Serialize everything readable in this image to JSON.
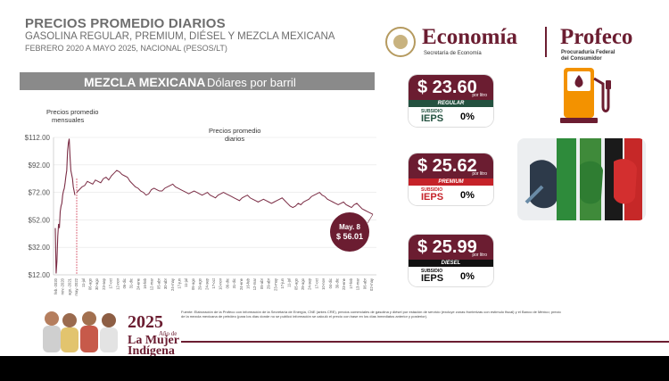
{
  "header": {
    "title": "PRECIOS PROMEDIO DIARIOS",
    "subtitle": "GASOLINA REGULAR, PREMIUM, DIÉSEL Y MEZCLA MEXICANA",
    "period": "FEBRERO 2020 A MAYO 2025, NACIONAL (PESOS/LT)"
  },
  "logos": {
    "economia": "Economía",
    "economia_sub": "Secretaría de Economía",
    "profeco": "Profeco",
    "profeco_sub1": "Procuraduría Federal",
    "profeco_sub2": "del Consumidor"
  },
  "banner": {
    "strong": "MEZCLA MEXICANA",
    "light": "Dólares por barril"
  },
  "chart_data": {
    "type": "line",
    "ylim": [
      12,
      112
    ],
    "y_ticks": [
      "$112.00",
      "$92.00",
      "$72.00",
      "$52.00",
      "$32.00",
      "$12.00"
    ],
    "annotations": {
      "monthly": [
        "Precios promedio",
        "mensuales"
      ],
      "daily": [
        "Precios promedio",
        "diarios"
      ],
      "callout_date": "May. 8",
      "callout_value": "$ 56.01"
    },
    "x_labels": [
      "feb.-2020",
      "nov.-2020",
      "ago.-2021",
      "may.-2022",
      "11-jul",
      "06-ago",
      "30-ago",
      "23-sep",
      "17-oct",
      "12-nov",
      "06-dic",
      "31-dic",
      "24-ene",
      "16-feb",
      "12-mar",
      "05-abr",
      "30-abr",
      "24-may",
      "17-jun",
      "11-jul",
      "05-ago",
      "29-ago",
      "24-sep",
      "17-oct",
      "10-nov",
      "06-dic",
      "31-dic",
      "24-ene",
      "16-feb",
      "12-mar",
      "05-abr",
      "29-abr",
      "23-may",
      "17-jun",
      "11-jul",
      "05-ago",
      "29-ago",
      "24-sep",
      "17-oct",
      "10-nov",
      "04-dic",
      "30-dic",
      "23-ene",
      "17-feb",
      "13-mar",
      "06-abr",
      "02-may"
    ],
    "monthly_series": [
      46,
      13,
      22,
      40,
      49,
      46,
      58,
      62,
      64,
      70,
      73,
      75,
      79,
      84,
      88,
      102,
      108,
      111,
      98,
      88,
      85,
      82,
      76,
      73,
      70
    ],
    "daily_series": [
      72,
      74,
      76,
      77,
      80,
      79,
      78,
      81,
      80,
      79,
      82,
      83,
      81,
      84,
      86,
      88,
      87,
      85,
      84,
      83,
      80,
      78,
      76,
      75,
      73,
      72,
      70,
      71,
      74,
      75,
      74,
      73,
      73,
      75,
      76,
      77,
      78,
      76,
      75,
      74,
      73,
      72,
      71,
      72,
      73,
      72,
      71,
      70,
      71,
      72,
      70,
      69,
      68,
      70,
      71,
      72,
      71,
      70,
      69,
      68,
      67,
      66,
      68,
      69,
      70,
      68,
      67,
      66,
      65,
      66,
      67,
      66,
      65,
      64,
      65,
      66,
      67,
      68,
      66,
      64,
      62,
      61,
      62,
      64,
      63,
      65,
      66,
      67,
      69,
      70,
      71,
      72,
      70,
      69,
      67,
      66,
      65,
      64,
      63,
      64,
      65,
      63,
      62,
      61,
      63,
      64,
      62,
      60,
      59,
      58,
      57,
      56
    ]
  },
  "price_cards": [
    {
      "amount": "$ 23.60",
      "unit": "por litro",
      "type": "REGULAR",
      "band_color": "#23513f",
      "sub": "SUBSIDIO",
      "ieps": "IEPS",
      "pct": "0%",
      "ieps_color": "#23513f"
    },
    {
      "amount": "$ 25.62",
      "unit": "por litro",
      "type": "PREMIUM",
      "band_color": "#c52229",
      "sub": "SUBSIDIO",
      "ieps": "IEPS",
      "pct": "0%",
      "ieps_color": "#c52229"
    },
    {
      "amount": "$ 25.99",
      "unit": "por litro",
      "type": "DIÉSEL",
      "band_color": "#111111",
      "sub": "SUBSIDIO",
      "ieps": "IEPS",
      "pct": "0%",
      "ieps_color": "#111111"
    }
  ],
  "footnote": "Fuente: Elaboración de la Profeco con información de la Secretaría de Energía, CNE (antes CRE), precios comerciales de gasolina y diésel por estación de servicio (excluye zonas fronterizas con estímulo fiscal) y el Banco de México; precio de la mezcla mexicana de petróleo (para los días donde no se publicó información se calculó el precio con base en los días inmediatos anterior y posterior).",
  "footer": {
    "year": "2025",
    "sub": "Año de",
    "line1": "La Mujer",
    "line2": "Indígena"
  },
  "colors": {
    "accent": "#6b1d31",
    "series": "#7b2d45",
    "grid": "#e6e6e6"
  }
}
